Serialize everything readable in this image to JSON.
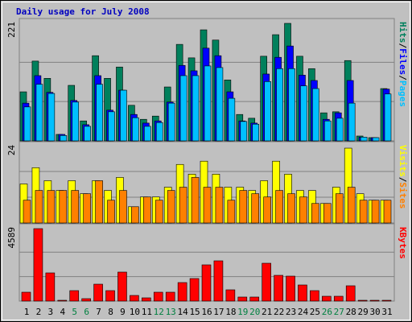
{
  "chart_data": [
    {
      "type": "bar",
      "title": "Daily usage for July 2008",
      "label_separator": "/",
      "ylim": [
        0,
        221
      ],
      "yticks": [
        221
      ],
      "series": [
        {
          "name": "Hits",
          "color": "#00805c",
          "values": [
            91,
            148,
            116,
            12,
            103,
            37,
            158,
            116,
            137,
            66,
            40,
            46,
            100,
            179,
            154,
            206,
            187,
            113,
            49,
            42,
            157,
            197,
            218,
            157,
            134,
            52,
            54,
            149,
            9,
            6,
            97
          ]
        },
        {
          "name": "Files",
          "color": "#0000ff",
          "values": [
            70,
            121,
            90,
            12,
            75,
            30,
            121,
            57,
            94,
            49,
            33,
            37,
            72,
            140,
            130,
            172,
            158,
            91,
            37,
            33,
            124,
            155,
            176,
            122,
            112,
            40,
            52,
            112,
            7,
            6,
            96
          ]
        },
        {
          "name": "Pages",
          "color": "#00c0ff",
          "values": [
            63,
            105,
            88,
            10,
            72,
            27,
            105,
            54,
            94,
            43,
            27,
            34,
            70,
            121,
            121,
            139,
            136,
            79,
            36,
            31,
            110,
            134,
            134,
            102,
            97,
            37,
            42,
            70,
            7,
            6,
            87
          ]
        }
      ]
    },
    {
      "type": "bar",
      "label_separator": "/",
      "ylim": [
        0,
        24
      ],
      "yticks": [
        24
      ],
      "series": [
        {
          "name": "Visits",
          "color": "#ffff00",
          "values": [
            12,
            17,
            13,
            10,
            13,
            9,
            13,
            10,
            14,
            5,
            8,
            8,
            11,
            18,
            15,
            19,
            15,
            11,
            11,
            10,
            13,
            19,
            15,
            10,
            10,
            6,
            11,
            23,
            9,
            7,
            7
          ]
        },
        {
          "name": "Sites",
          "color": "#ff8000",
          "values": [
            7,
            10,
            10,
            10,
            10,
            9,
            13,
            7,
            10,
            5,
            8,
            7,
            10,
            11,
            14,
            11,
            11,
            7,
            10,
            9,
            8,
            10,
            9,
            8,
            6,
            6,
            9,
            11,
            7,
            7,
            7
          ]
        }
      ]
    },
    {
      "type": "bar",
      "ylim": [
        0,
        4589
      ],
      "yticks": [
        4589
      ],
      "categories": [
        "1",
        "2",
        "3",
        "4",
        "5",
        "6",
        "7",
        "8",
        "9",
        "10",
        "11",
        "12",
        "13",
        "14",
        "15",
        "16",
        "17",
        "18",
        "19",
        "20",
        "21",
        "22",
        "23",
        "24",
        "25",
        "26",
        "27",
        "28",
        "29",
        "30",
        "31"
      ],
      "category_colors": [
        "#000",
        "#000",
        "#000",
        "#000",
        "#008040",
        "#008040",
        "#000",
        "#000",
        "#000",
        "#000",
        "#000",
        "#008040",
        "#008040",
        "#000",
        "#000",
        "#000",
        "#000",
        "#000",
        "#008040",
        "#008040",
        "#000",
        "#000",
        "#000",
        "#000",
        "#000",
        "#008040",
        "#008040",
        "#000",
        "#000",
        "#000",
        "#000"
      ],
      "series": [
        {
          "name": "KBytes",
          "color": "#ff0000",
          "values": [
            549,
            4489,
            1746,
            50,
            648,
            150,
            1047,
            648,
            1796,
            349,
            200,
            549,
            549,
            1147,
            1397,
            2245,
            2494,
            698,
            250,
            250,
            2344,
            1596,
            1546,
            998,
            648,
            299,
            299,
            948,
            50,
            50,
            50
          ]
        }
      ]
    }
  ]
}
